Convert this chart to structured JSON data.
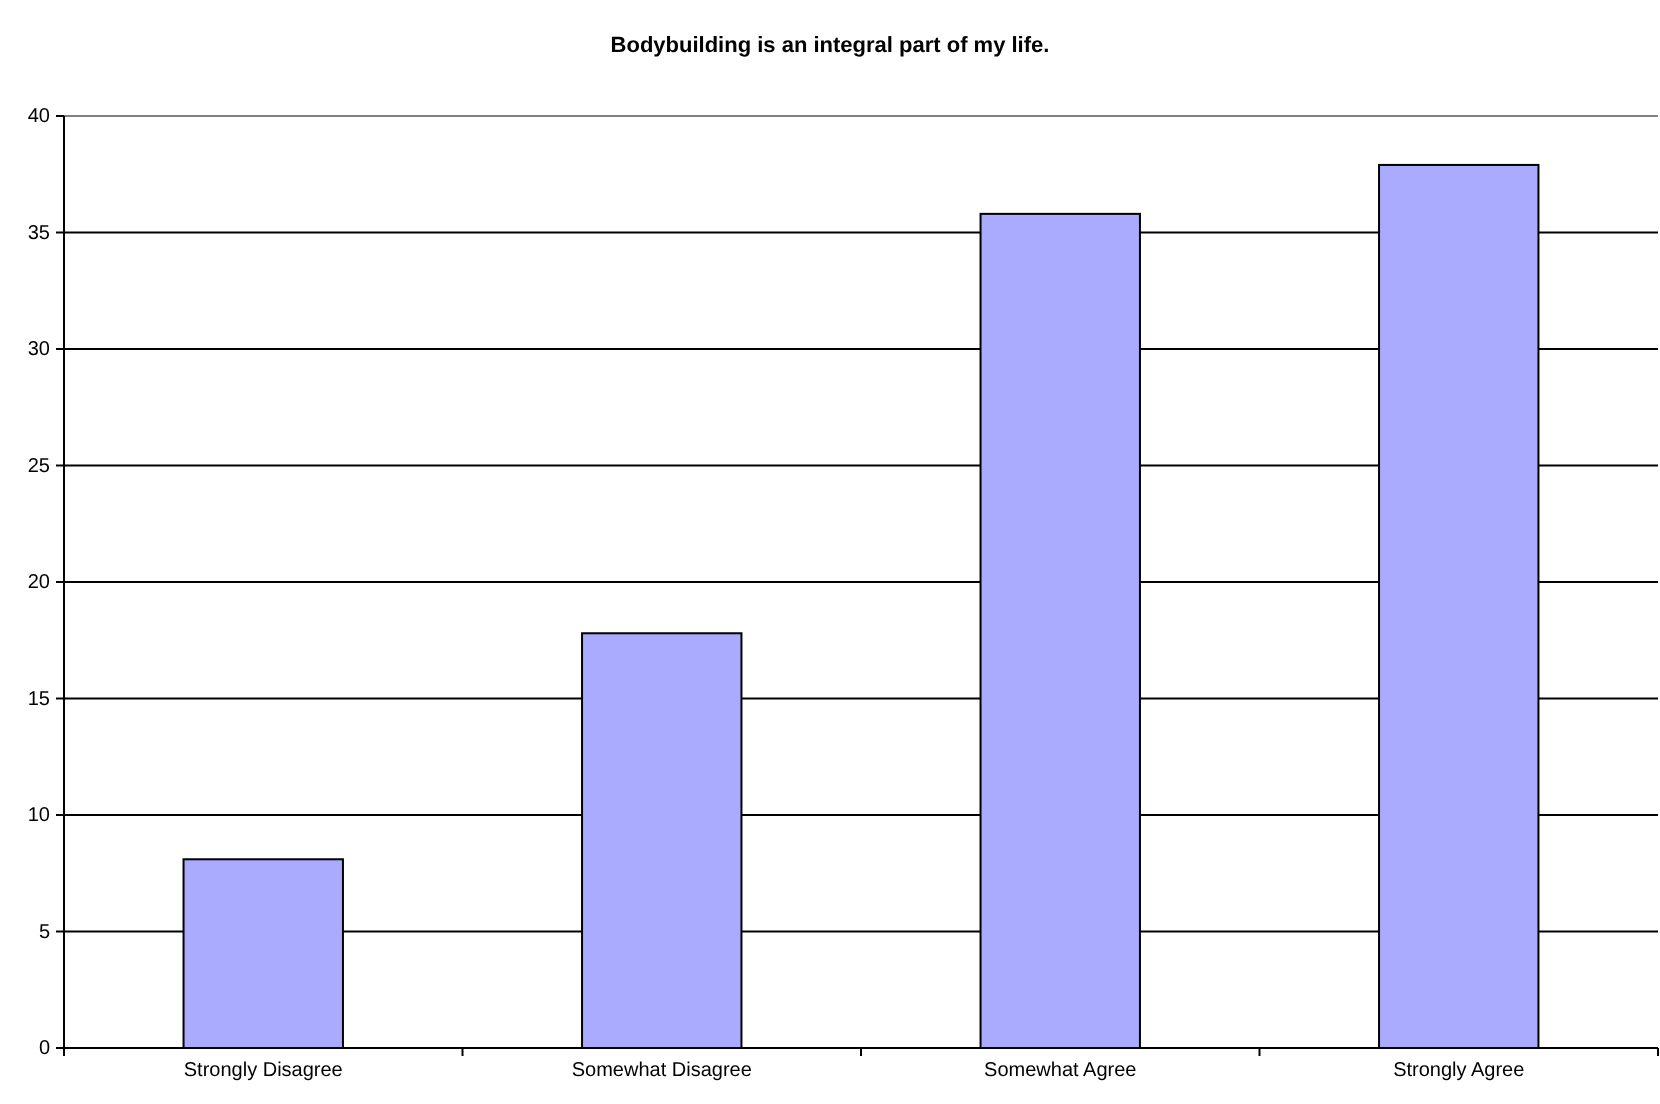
{
  "chart_data": {
    "type": "bar",
    "title": "Bodybuilding is an integral part of my life.",
    "categories": [
      "Strongly Disagree",
      "Somewhat Disagree",
      "Somewhat Agree",
      "Strongly Agree"
    ],
    "values": [
      8.1,
      17.8,
      35.8,
      37.9
    ],
    "color": "#aaaaff",
    "ylim": [
      0,
      40
    ],
    "yticks": [
      0,
      5,
      10,
      15,
      20,
      25,
      30,
      35,
      40
    ],
    "grid": "y"
  }
}
